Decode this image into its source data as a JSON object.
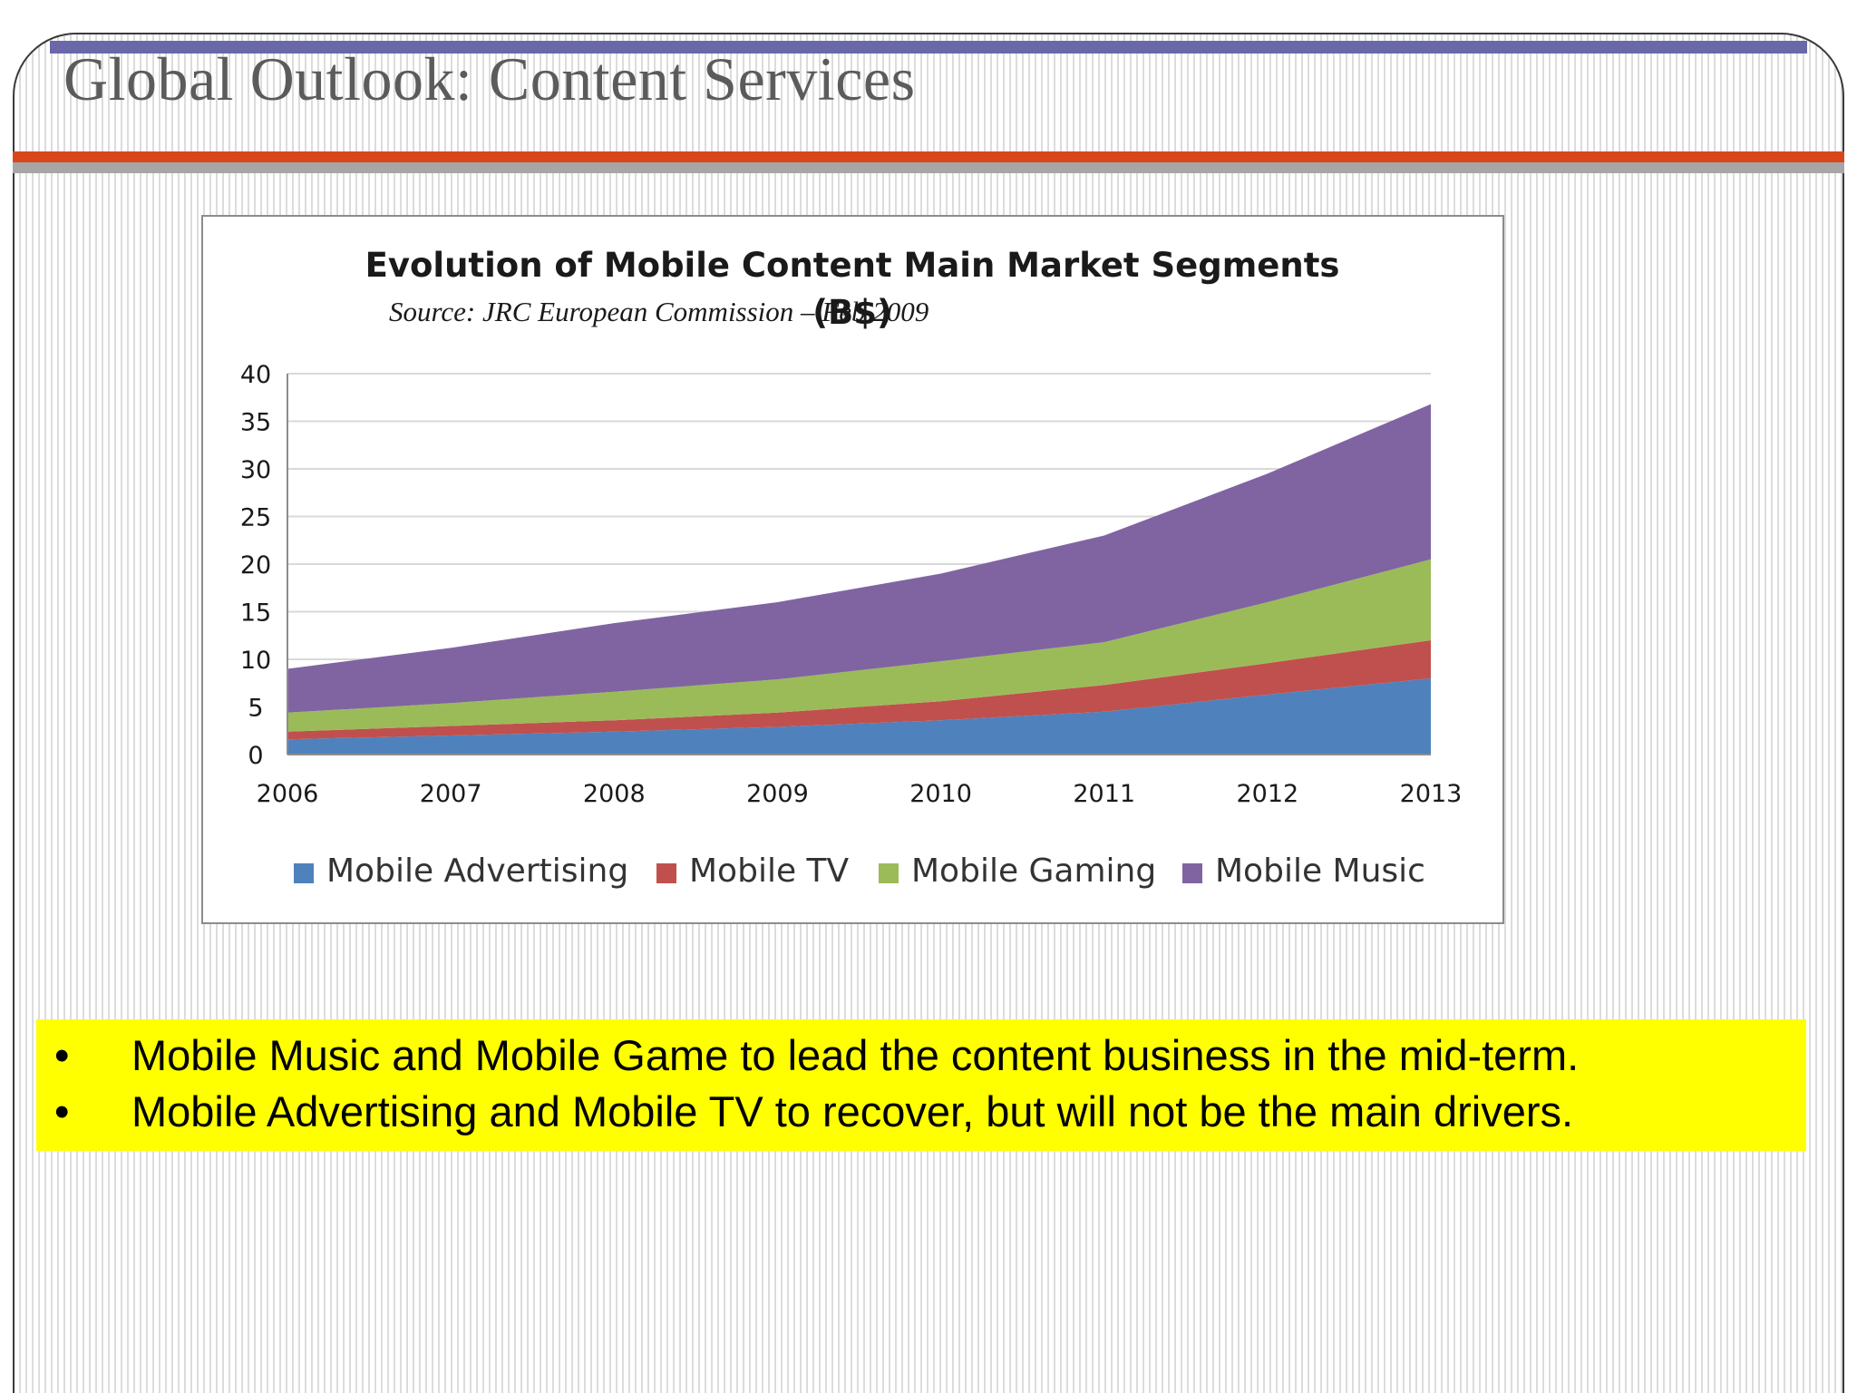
{
  "slide": {
    "title": "Global Outlook: Content Services",
    "colors": {
      "title_bar": "#d9461c",
      "top_bar": "#6a68a8",
      "highlight": "#ffff00"
    },
    "bullets": [
      {
        "marker": "•",
        "text": "Mobile Music and Mobile Game to lead the content business in the mid-term."
      },
      {
        "marker": "•",
        "text": "Mobile Advertising and Mobile TV to recover, but will not be the main drivers."
      }
    ]
  },
  "chart_data": {
    "type": "area",
    "stacked": true,
    "title": "Evolution of Mobile Content Main Market Segments",
    "subtitle": "(B$)",
    "source_note": "Source: JRC European Commission – Feb 2009",
    "x": [
      "2006",
      "2007",
      "2008",
      "2009",
      "2010",
      "2011",
      "2012",
      "2013"
    ],
    "ylim": [
      0,
      40
    ],
    "yticks": [
      0,
      5,
      10,
      15,
      20,
      25,
      30,
      35,
      40
    ],
    "grid": true,
    "legend_position": "bottom",
    "series": [
      {
        "name": "Mobile Advertising",
        "color": "#4f81bd",
        "values": [
          1.6,
          2.0,
          2.4,
          2.9,
          3.6,
          4.5,
          6.3,
          8.0
        ]
      },
      {
        "name": "Mobile TV",
        "color": "#c0504d",
        "values": [
          0.8,
          1.0,
          1.2,
          1.5,
          2.0,
          2.8,
          3.3,
          4.0
        ]
      },
      {
        "name": "Mobile Gaming",
        "color": "#9bbb59",
        "values": [
          2.0,
          2.4,
          3.0,
          3.5,
          4.2,
          4.5,
          6.4,
          8.5
        ]
      },
      {
        "name": "Mobile Music",
        "color": "#8064a2",
        "values": [
          4.6,
          5.8,
          7.2,
          8.1,
          9.2,
          11.2,
          13.5,
          16.3
        ]
      }
    ]
  }
}
